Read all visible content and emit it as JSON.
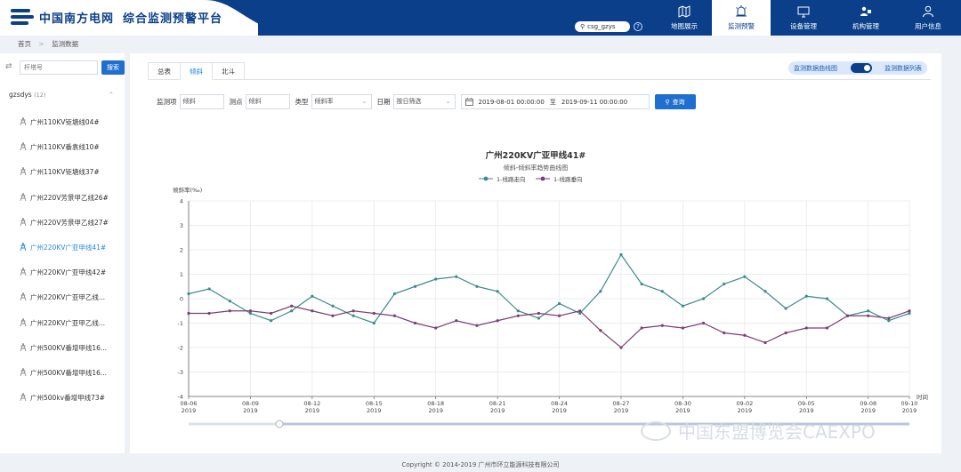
{
  "header": {
    "company": "中国南方电网",
    "platform": "综合监测预警平台",
    "user": "csg_gzys",
    "nav": [
      {
        "label": "地图展示",
        "icon": "map-icon"
      },
      {
        "label": "监测预警",
        "icon": "alarm-icon"
      },
      {
        "label": "设备管理",
        "icon": "monitor-icon"
      },
      {
        "label": "机构管理",
        "icon": "org-icon"
      },
      {
        "label": "用户信息",
        "icon": "user-icon"
      }
    ],
    "active_nav": 1
  },
  "breadcrumb": [
    "首页",
    ">",
    "监测数据"
  ],
  "sidebar": {
    "search_placeholder": "杆塔号",
    "search_button": "搜索",
    "group": "gzsdys",
    "group_count": "(12)",
    "items": [
      "广州110KV钜塘线04#",
      "广州110KV番袁线10#",
      "广州110KV钜塘线37#",
      "广州220V芳景甲乙线26#",
      "广州220V芳景甲乙线27#",
      "广州220KV广亚甲线41#",
      "广州220KV广亚甲线42#",
      "广州220KV广亚甲乙线...",
      "广州220KV广亚甲乙线...",
      "广州500KV番增甲线16...",
      "广州500KV番增甲线16...",
      "广州500kv番增甲线73#"
    ],
    "selected": 5
  },
  "tabs": [
    "总表",
    "倾斜",
    "北斗"
  ],
  "active_tab": 1,
  "toggle": {
    "left": "监测数据曲线图",
    "right": "监测数据列表"
  },
  "filters": {
    "monitor_item_label": "监测项",
    "monitor_item_value": "倾斜",
    "point_label": "测点",
    "point_value": "倾斜",
    "type_label": "类型",
    "type_value": "倾斜率",
    "date_label": "日期",
    "date_mode": "按日筛选",
    "start": "2019-08-01 00:00:00",
    "to": "至",
    "end": "2019-09-11 00:00:00",
    "query": "查询"
  },
  "chart_data": {
    "type": "line",
    "title": "广州220KV广亚甲线41#",
    "subtitle": "倾斜-倾斜率趋势曲线图",
    "ylabel": "倾斜率(‰)",
    "xlabel": "时间",
    "ylim": [
      -4,
      4
    ],
    "yticks": [
      4,
      3,
      2,
      1,
      0,
      -1,
      -2,
      -3,
      -4
    ],
    "xlim": [
      "2019-08-06",
      "2019-09-10"
    ],
    "xticks": [
      {
        "md": "08-06",
        "y": "2019"
      },
      {
        "md": "08-09",
        "y": "2019"
      },
      {
        "md": "08-12",
        "y": "2019"
      },
      {
        "md": "08-15",
        "y": "2019"
      },
      {
        "md": "08-18",
        "y": "2019"
      },
      {
        "md": "08-21",
        "y": "2019"
      },
      {
        "md": "08-24",
        "y": "2019"
      },
      {
        "md": "08-27",
        "y": "2019"
      },
      {
        "md": "08-30",
        "y": "2019"
      },
      {
        "md": "09-02",
        "y": "2019"
      },
      {
        "md": "09-05",
        "y": "2019"
      },
      {
        "md": "09-08",
        "y": "2019"
      },
      {
        "md": "09-10",
        "y": "2019"
      }
    ],
    "legend_position": "top-center",
    "grid": true,
    "series": [
      {
        "name": "1-线路走向",
        "color": "#3e8a8c",
        "x": [
          "2019-08-06",
          "2019-08-07",
          "2019-08-08",
          "2019-08-09",
          "2019-08-10",
          "2019-08-11",
          "2019-08-12",
          "2019-08-13",
          "2019-08-14",
          "2019-08-15",
          "2019-08-16",
          "2019-08-17",
          "2019-08-18",
          "2019-08-19",
          "2019-08-20",
          "2019-08-21",
          "2019-08-22",
          "2019-08-23",
          "2019-08-24",
          "2019-08-25",
          "2019-08-26",
          "2019-08-27",
          "2019-08-28",
          "2019-08-29",
          "2019-08-30",
          "2019-08-31",
          "2019-09-01",
          "2019-09-02",
          "2019-09-03",
          "2019-09-04",
          "2019-09-05",
          "2019-09-06",
          "2019-09-07",
          "2019-09-08",
          "2019-09-09",
          "2019-09-10"
        ],
        "y": [
          0.2,
          0.4,
          -0.1,
          -0.6,
          -0.9,
          -0.5,
          0.1,
          -0.3,
          -0.7,
          -1.0,
          0.2,
          0.5,
          0.8,
          0.9,
          0.5,
          0.3,
          -0.5,
          -0.8,
          -0.2,
          -0.6,
          0.3,
          1.8,
          0.6,
          0.3,
          -0.3,
          0.0,
          0.6,
          0.9,
          0.3,
          -0.4,
          0.1,
          0.0,
          -0.7,
          -0.5,
          -0.9,
          -0.6
        ]
      },
      {
        "name": "1-线路垂向",
        "color": "#7a3f72",
        "x": [
          "2019-08-06",
          "2019-08-07",
          "2019-08-08",
          "2019-08-09",
          "2019-08-10",
          "2019-08-11",
          "2019-08-12",
          "2019-08-13",
          "2019-08-14",
          "2019-08-15",
          "2019-08-16",
          "2019-08-17",
          "2019-08-18",
          "2019-08-19",
          "2019-08-20",
          "2019-08-21",
          "2019-08-22",
          "2019-08-23",
          "2019-08-24",
          "2019-08-25",
          "2019-08-26",
          "2019-08-27",
          "2019-08-28",
          "2019-08-29",
          "2019-08-30",
          "2019-08-31",
          "2019-09-01",
          "2019-09-02",
          "2019-09-03",
          "2019-09-04",
          "2019-09-05",
          "2019-09-06",
          "2019-09-07",
          "2019-09-08",
          "2019-09-09",
          "2019-09-10"
        ],
        "y": [
          -0.6,
          -0.6,
          -0.5,
          -0.5,
          -0.6,
          -0.3,
          -0.5,
          -0.7,
          -0.5,
          -0.6,
          -0.7,
          -1.0,
          -1.2,
          -0.9,
          -1.1,
          -0.9,
          -0.7,
          -0.6,
          -0.7,
          -0.5,
          -1.3,
          -2.0,
          -1.2,
          -1.1,
          -1.2,
          -1.0,
          -1.4,
          -1.5,
          -1.8,
          -1.4,
          -1.2,
          -1.2,
          -0.7,
          -0.7,
          -0.8,
          -0.5
        ]
      }
    ]
  },
  "footer": {
    "copyright": "Copyright © 2014-2019 广州市环立能源科技有限公司"
  },
  "watermark": {
    "text": "中国东盟博览会CAEXPO"
  }
}
